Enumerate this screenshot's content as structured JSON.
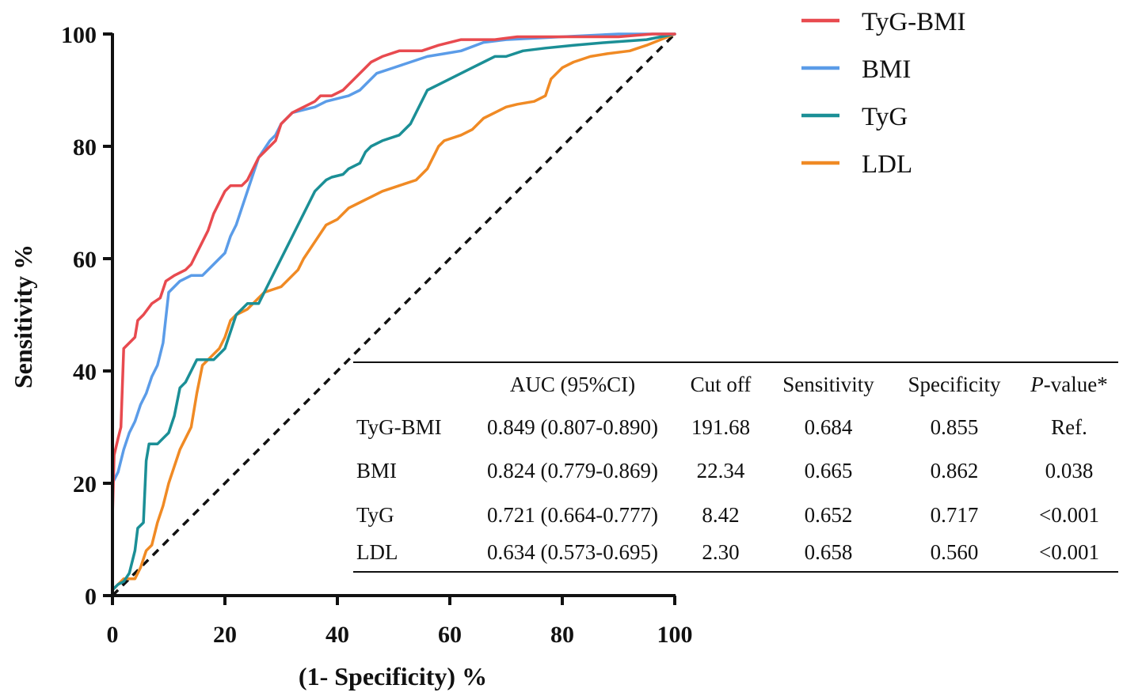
{
  "chart_data": {
    "type": "line",
    "title": "",
    "xlabel": "(1- Specificity) %",
    "ylabel": "Sensitivity %",
    "xlim": [
      0,
      100
    ],
    "ylim": [
      0,
      100
    ],
    "xticks": [
      "0",
      "20",
      "40",
      "60",
      "80",
      "100"
    ],
    "yticks": [
      "0",
      "20",
      "40",
      "60",
      "80",
      "100"
    ],
    "reference_line": {
      "style": "dashed",
      "from": [
        0,
        0
      ],
      "to": [
        100,
        100
      ]
    },
    "legend_position": "top-right",
    "series": [
      {
        "name": "TyG-BMI",
        "color": "#e84a4f",
        "points": [
          [
            0,
            14
          ],
          [
            0.3,
            25
          ],
          [
            1,
            28
          ],
          [
            1.5,
            30
          ],
          [
            2,
            44
          ],
          [
            3,
            45
          ],
          [
            4,
            46
          ],
          [
            4.5,
            49
          ],
          [
            5.5,
            50
          ],
          [
            7,
            52
          ],
          [
            8.5,
            53
          ],
          [
            9.5,
            56
          ],
          [
            11,
            57
          ],
          [
            13,
            58
          ],
          [
            14,
            59
          ],
          [
            15,
            61
          ],
          [
            16,
            63
          ],
          [
            17,
            65
          ],
          [
            18,
            68
          ],
          [
            19,
            70
          ],
          [
            20,
            72
          ],
          [
            21,
            73
          ],
          [
            23,
            73
          ],
          [
            24,
            74
          ],
          [
            25,
            76
          ],
          [
            26,
            78
          ],
          [
            27,
            79
          ],
          [
            28,
            80
          ],
          [
            29,
            81
          ],
          [
            30,
            84
          ],
          [
            31,
            85
          ],
          [
            32,
            86
          ],
          [
            34,
            87
          ],
          [
            36,
            88
          ],
          [
            37,
            89
          ],
          [
            39,
            89
          ],
          [
            41,
            90
          ],
          [
            43,
            92
          ],
          [
            45,
            94
          ],
          [
            46,
            95
          ],
          [
            48,
            96
          ],
          [
            51,
            97
          ],
          [
            55,
            97
          ],
          [
            58,
            98
          ],
          [
            62,
            99
          ],
          [
            68,
            99
          ],
          [
            72,
            99.5
          ],
          [
            80,
            99.5
          ],
          [
            90,
            99.5
          ],
          [
            96,
            100
          ],
          [
            100,
            100
          ]
        ]
      },
      {
        "name": "BMI",
        "color": "#5b9ce8",
        "points": [
          [
            0,
            0
          ],
          [
            0,
            20
          ],
          [
            1,
            22
          ],
          [
            2,
            26
          ],
          [
            3,
            29
          ],
          [
            4,
            31
          ],
          [
            5,
            34
          ],
          [
            6,
            36
          ],
          [
            7,
            39
          ],
          [
            8,
            41
          ],
          [
            9,
            45
          ],
          [
            10,
            54
          ],
          [
            11,
            55
          ],
          [
            12,
            56
          ],
          [
            14,
            57
          ],
          [
            16,
            57
          ],
          [
            18,
            59
          ],
          [
            20,
            61
          ],
          [
            21,
            64
          ],
          [
            22,
            66
          ],
          [
            23,
            69
          ],
          [
            24,
            72
          ],
          [
            25,
            75
          ],
          [
            26,
            78
          ],
          [
            28,
            81
          ],
          [
            29,
            82
          ],
          [
            30,
            84
          ],
          [
            32,
            86
          ],
          [
            36,
            87
          ],
          [
            38,
            88
          ],
          [
            42,
            89
          ],
          [
            44,
            90
          ],
          [
            45,
            91
          ],
          [
            47,
            93
          ],
          [
            50,
            94
          ],
          [
            53,
            95
          ],
          [
            56,
            96
          ],
          [
            59,
            96.5
          ],
          [
            62,
            97
          ],
          [
            66,
            98.5
          ],
          [
            70,
            99
          ],
          [
            80,
            99.5
          ],
          [
            90,
            100
          ],
          [
            100,
            100
          ]
        ]
      },
      {
        "name": "TyG",
        "color": "#1b8f96",
        "points": [
          [
            0,
            1
          ],
          [
            1,
            2
          ],
          [
            2,
            2.5
          ],
          [
            3,
            4
          ],
          [
            4,
            8
          ],
          [
            4.5,
            12
          ],
          [
            5.5,
            13
          ],
          [
            6,
            24
          ],
          [
            6.5,
            27
          ],
          [
            8,
            27
          ],
          [
            9,
            28
          ],
          [
            10,
            29
          ],
          [
            11,
            32
          ],
          [
            12,
            37
          ],
          [
            13,
            38
          ],
          [
            14,
            40
          ],
          [
            15,
            42
          ],
          [
            18,
            42
          ],
          [
            20,
            44
          ],
          [
            21,
            47
          ],
          [
            22,
            50
          ],
          [
            24,
            52
          ],
          [
            26,
            52
          ],
          [
            27,
            54
          ],
          [
            28,
            56
          ],
          [
            29,
            58
          ],
          [
            30,
            60
          ],
          [
            31,
            62
          ],
          [
            32,
            64
          ],
          [
            33,
            66
          ],
          [
            34,
            68
          ],
          [
            35,
            70
          ],
          [
            36,
            72
          ],
          [
            37,
            73
          ],
          [
            38,
            74
          ],
          [
            39,
            74.5
          ],
          [
            41,
            75
          ],
          [
            42,
            76
          ],
          [
            44,
            77
          ],
          [
            45,
            79
          ],
          [
            46,
            80
          ],
          [
            48,
            81
          ],
          [
            51,
            82
          ],
          [
            53,
            84
          ],
          [
            54,
            86
          ],
          [
            55,
            88
          ],
          [
            56,
            90
          ],
          [
            58,
            91
          ],
          [
            60,
            92
          ],
          [
            62,
            93
          ],
          [
            64,
            94
          ],
          [
            66,
            95
          ],
          [
            68,
            96
          ],
          [
            70,
            96
          ],
          [
            73,
            97
          ],
          [
            77,
            97.5
          ],
          [
            82,
            98
          ],
          [
            88,
            98.5
          ],
          [
            95,
            99
          ],
          [
            100,
            100
          ]
        ]
      },
      {
        "name": "LDL",
        "color": "#f08a24",
        "points": [
          [
            0,
            1
          ],
          [
            1,
            2
          ],
          [
            2,
            3
          ],
          [
            3,
            3
          ],
          [
            4,
            3
          ],
          [
            5,
            5
          ],
          [
            6,
            8
          ],
          [
            7,
            9
          ],
          [
            8,
            13
          ],
          [
            9,
            16
          ],
          [
            10,
            20
          ],
          [
            11,
            23
          ],
          [
            12,
            26
          ],
          [
            13,
            28
          ],
          [
            14,
            30
          ],
          [
            15,
            36
          ],
          [
            16,
            41
          ],
          [
            17,
            42
          ],
          [
            19,
            44
          ],
          [
            20,
            46
          ],
          [
            21,
            49
          ],
          [
            22,
            50
          ],
          [
            24,
            51
          ],
          [
            25,
            52
          ],
          [
            27,
            54
          ],
          [
            30,
            55
          ],
          [
            32,
            57
          ],
          [
            33,
            58
          ],
          [
            34,
            60
          ],
          [
            36,
            63
          ],
          [
            38,
            66
          ],
          [
            40,
            67
          ],
          [
            42,
            69
          ],
          [
            44,
            70
          ],
          [
            46,
            71
          ],
          [
            48,
            72
          ],
          [
            51,
            73
          ],
          [
            54,
            74
          ],
          [
            56,
            76
          ],
          [
            57,
            78
          ],
          [
            58,
            80
          ],
          [
            59,
            81
          ],
          [
            62,
            82
          ],
          [
            64,
            83
          ],
          [
            66,
            85
          ],
          [
            68,
            86
          ],
          [
            70,
            87
          ],
          [
            72,
            87.5
          ],
          [
            75,
            88
          ],
          [
            77,
            89
          ],
          [
            78,
            92
          ],
          [
            79,
            93
          ],
          [
            80,
            94
          ],
          [
            82,
            95
          ],
          [
            85,
            96
          ],
          [
            88,
            96.5
          ],
          [
            92,
            97
          ],
          [
            95,
            98
          ],
          [
            100,
            100
          ]
        ]
      }
    ],
    "table": {
      "columns": [
        "",
        "AUC (95%CI)",
        "Cut off",
        "Sensitivity",
        "Specificity",
        "P-value*"
      ],
      "rows": [
        [
          "TyG-BMI",
          "0.849 (0.807-0.890)",
          "191.68",
          "0.684",
          "0.855",
          "Ref."
        ],
        [
          "BMI",
          "0.824 (0.779-0.869)",
          "22.34",
          "0.665",
          "0.862",
          "0.038"
        ],
        [
          "TyG",
          "0.721 (0.664-0.777)",
          "8.42",
          "0.652",
          "0.717",
          "<0.001"
        ],
        [
          "LDL",
          "0.634 (0.573-0.695)",
          "2.30",
          "0.658",
          "0.560",
          "<0.001"
        ]
      ]
    }
  }
}
